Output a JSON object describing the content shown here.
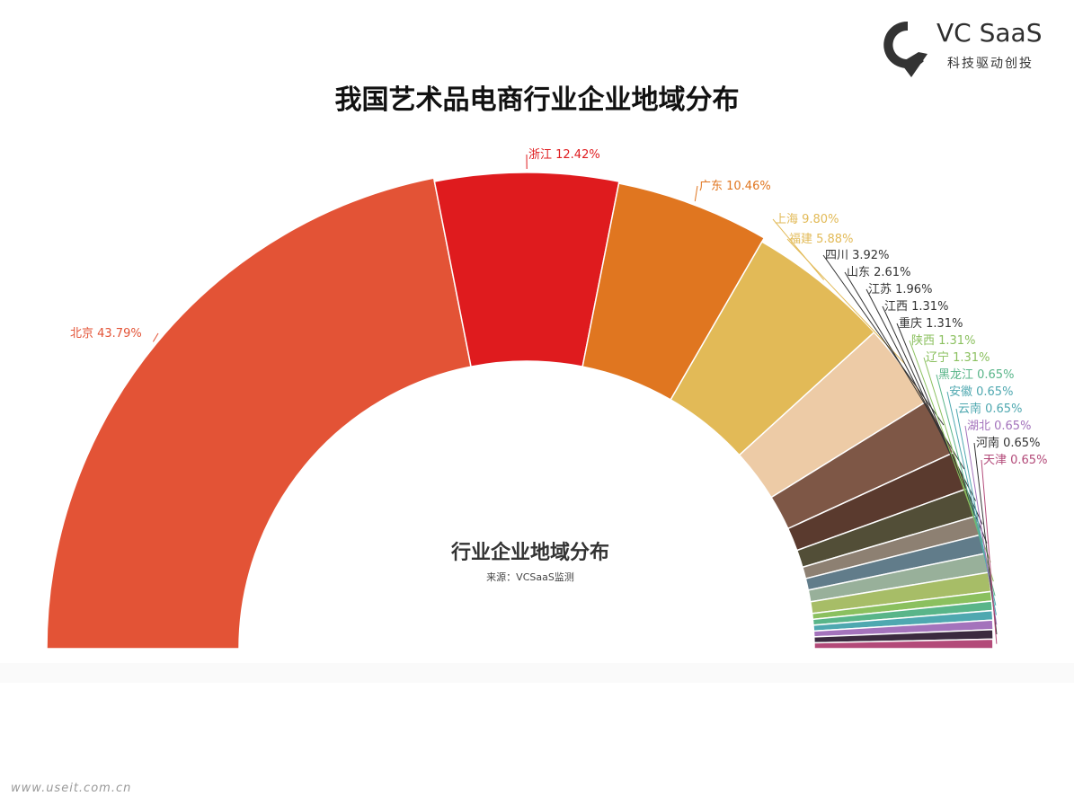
{
  "logo": {
    "brand": "VC SaaS",
    "tagline": "科技驱动创投",
    "icon": "vcsaas-logo-icon"
  },
  "title": "我国艺术品电商行业企业地域分布",
  "inner": {
    "title": "行业企业地域分布",
    "source": "来源：VCSaaS监测"
  },
  "watermark": "www.useit.com.cn",
  "chart_data": {
    "type": "pie",
    "style": "half-donut",
    "categories": [
      "北京",
      "浙江",
      "广东",
      "上海",
      "福建",
      "四川",
      "山东",
      "江苏",
      "江西",
      "重庆",
      "陕西",
      "辽宁",
      "黑龙江",
      "安徽",
      "云南",
      "湖北",
      "河南",
      "天津"
    ],
    "values": [
      43.79,
      12.42,
      10.46,
      9.8,
      5.88,
      3.92,
      2.61,
      1.96,
      1.31,
      1.31,
      1.31,
      1.31,
      0.65,
      0.65,
      0.65,
      0.65,
      0.65,
      0.65
    ],
    "labels": [
      "北京 43.79%",
      "浙江 12.42%",
      "广东 10.46%",
      "上海 9.80%",
      "福建 5.88%",
      "四川 3.92%",
      "山东 2.61%",
      "江苏 1.96%",
      "江西 1.31%",
      "重庆 1.31%",
      "陕西 1.31%",
      "辽宁 1.31%",
      "黑龙江 0.65%",
      "安徽 0.65%",
      "云南 0.65%",
      "湖北 0.65%",
      "河南 0.65%",
      "天津 0.65%"
    ],
    "colors": [
      "#E35336",
      "#DF1B1E",
      "#E07620",
      "#E2BA57",
      "#EDCBA6",
      "#7E5746",
      "#5A3A2E",
      "#524E37",
      "#8D8072",
      "#617C8A",
      "#98B09A",
      "#A7BD67",
      "#8BC05F",
      "#59B589",
      "#4FA8B0",
      "#A473BC",
      "#3B2A3F",
      "#B34A79"
    ],
    "label_colors": [
      "#E35336",
      "#DF1B1E",
      "#E07620",
      "#E2BA57",
      "#E2BA57",
      "#333333",
      "#333333",
      "#333333",
      "#333333",
      "#333333",
      "#8BC05F",
      "#8BC05F",
      "#59B589",
      "#4FA8B0",
      "#4FA8B0",
      "#A473BC",
      "#333333",
      "#B34A79"
    ]
  }
}
